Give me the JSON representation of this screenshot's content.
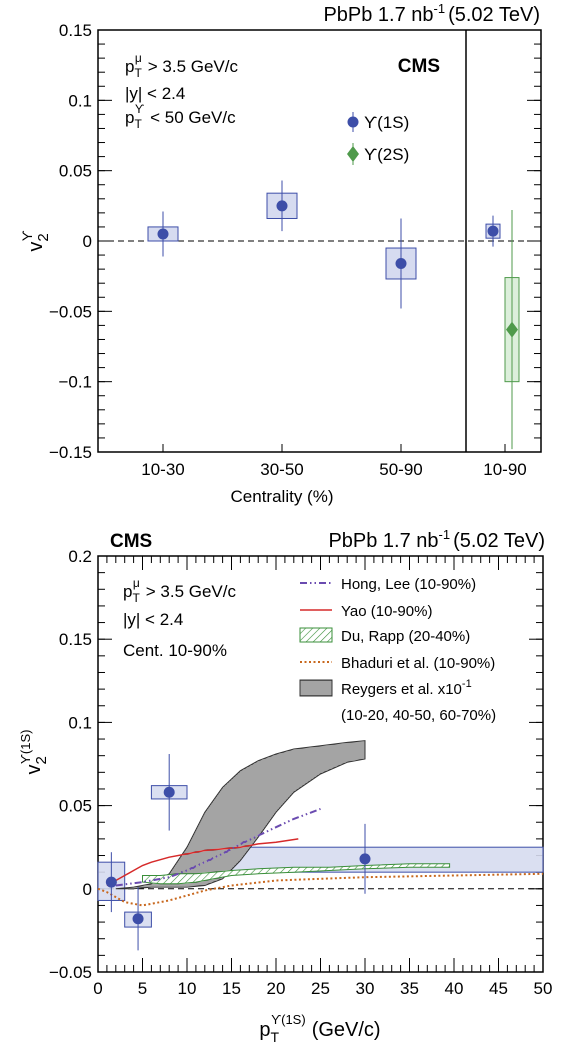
{
  "top_panel": {
    "header": {
      "system": "PbPb 1.7 nb",
      "lumi_exp": "-1",
      "energy": "(5.02 TeV)"
    },
    "cms_label": "CMS",
    "cuts": {
      "line1_var": "p",
      "line1_sub": "T",
      "line1_sup": "μ",
      "line1_rest": "> 3.5 GeV/c",
      "line2": "|y| < 2.4",
      "line3_var": "p",
      "line3_sub": "T",
      "line3_sup": "ϒ",
      "line3_rest": "< 50 GeV/c"
    },
    "ylabel_main": "v",
    "ylabel_sub": "2",
    "ylabel_sup": "ϒ",
    "xlabel": "Centrality (%)",
    "yticks": [
      "0.15",
      "0.1",
      "0.05",
      "0",
      "−0.05",
      "−0.1",
      "−0.15"
    ],
    "legend": [
      {
        "label": "ϒ(1S)",
        "color": "#3d4ea8",
        "marker": "circle"
      },
      {
        "label": "ϒ(2S)",
        "color": "#4f9a4b",
        "marker": "diamond"
      }
    ]
  },
  "bottom_panel": {
    "header": {
      "system": "PbPb 1.7 nb",
      "lumi_exp": "-1",
      "energy": "(5.02 TeV)"
    },
    "cms_label": "CMS",
    "cuts": {
      "line1_var": "p",
      "line1_sub": "T",
      "line1_sup": "μ",
      "line1_rest": "> 3.5 GeV/c",
      "line2": "|y| < 2.4",
      "line3": "Cent. 10-90%"
    },
    "ylabel_main": "v",
    "ylabel_sub": "2",
    "ylabel_sup": "ϒ(1S)",
    "xlabel_main": "p",
    "xlabel_sub": "T",
    "xlabel_sup": "ϒ(1S)",
    "xlabel_rest": "(GeV/c)",
    "yticks": [
      "0.2",
      "0.15",
      "0.1",
      "0.05",
      "0",
      "−0.05"
    ],
    "xticks": [
      "0",
      "5",
      "10",
      "15",
      "20",
      "25",
      "30",
      "35",
      "40",
      "45",
      "50"
    ],
    "legend": [
      {
        "label": "Hong, Lee (10-90%)",
        "color": "#6a4bb0",
        "style": "dashdot"
      },
      {
        "label": "Yao (10-90%)",
        "color": "#d62a2a",
        "style": "solid"
      },
      {
        "label": "Du, Rapp (20-40%)",
        "color": "#3a8f3a",
        "style": "hatch"
      },
      {
        "label": "Bhaduri et al. (10-90%)",
        "color": "#c8681e",
        "style": "dotted"
      },
      {
        "label": "Reygers et al.  x10",
        "label_exp": "-1",
        "label2": "(10-20, 40-50, 60-70%)",
        "color": "#666666",
        "style": "band"
      }
    ]
  },
  "chart_data": [
    {
      "type": "scatter",
      "panel": "top-left",
      "categories": [
        "10-30",
        "30-50",
        "50-90"
      ],
      "xlabel": "Centrality (%)",
      "ylabel": "v2 Υ",
      "ylim": [
        -0.15,
        0.15
      ],
      "series": [
        {
          "name": "ϒ(1S)",
          "color": "#3d4ea8",
          "values": [
            0.005,
            0.025,
            -0.016
          ],
          "stat_err": [
            0.016,
            0.018,
            0.032
          ],
          "syst_err": [
            0.005,
            0.009,
            0.011
          ]
        }
      ]
    },
    {
      "type": "scatter",
      "panel": "top-right",
      "categories": [
        "10-90"
      ],
      "ylim": [
        -0.15,
        0.15
      ],
      "series": [
        {
          "name": "ϒ(1S)",
          "color": "#3d4ea8",
          "values": [
            0.007
          ],
          "stat_err": [
            0.011
          ],
          "syst_err": [
            0.005
          ]
        },
        {
          "name": "ϒ(2S)",
          "color": "#4f9a4b",
          "values": [
            -0.063
          ],
          "stat_err": [
            0.085
          ],
          "syst_err": [
            0.037
          ]
        }
      ]
    },
    {
      "type": "line",
      "panel": "bottom",
      "xlabel": "pT ϒ(1S) (GeV/c)",
      "ylabel": "v2 ϒ(1S)",
      "xlim": [
        0,
        50
      ],
      "ylim": [
        -0.05,
        0.2
      ],
      "points": {
        "name": "ϒ(1S)",
        "color": "#3d4ea8",
        "x": [
          1.5,
          4.5,
          8.0,
          30.0
        ],
        "y": [
          0.004,
          -0.018,
          0.058,
          0.018
        ],
        "stat_err": [
          0.018,
          0.019,
          0.023,
          0.021
        ],
        "syst_lo": [
          -0.007,
          -0.023,
          0.054,
          0.01
        ],
        "syst_hi": [
          0.016,
          -0.014,
          0.062,
          0.025
        ],
        "box_xlo": [
          0,
          3,
          6,
          10
        ],
        "box_xhi": [
          3,
          6,
          10,
          50
        ]
      },
      "models": [
        {
          "name": "Hong, Lee (10-90%)",
          "color": "#6a4bb0",
          "style": "dashdot",
          "x": [
            2,
            5,
            8,
            10,
            12,
            14,
            16,
            18,
            20,
            22,
            24,
            25
          ],
          "y": [
            0.002,
            0.004,
            0.007,
            0.011,
            0.016,
            0.021,
            0.027,
            0.032,
            0.037,
            0.042,
            0.046,
            0.048
          ]
        },
        {
          "name": "Yao (10-90%)",
          "color": "#d62a2a",
          "style": "solid",
          "x": [
            1,
            2,
            3,
            4,
            5,
            6,
            8,
            10,
            12,
            14,
            16,
            18,
            20,
            22.5
          ],
          "y": [
            0.002,
            0.005,
            0.008,
            0.011,
            0.014,
            0.016,
            0.019,
            0.021,
            0.023,
            0.024,
            0.025,
            0.027,
            0.028,
            0.03
          ]
        },
        {
          "name": "Du, Rapp (20-40%)",
          "color": "#3a8f3a",
          "style": "band",
          "x": [
            5,
            7,
            9,
            11,
            13,
            15,
            18,
            22,
            26,
            30,
            35,
            39.5
          ],
          "y_lo": [
            0.004,
            0.003,
            0.003,
            0.004,
            0.006,
            0.008,
            0.009,
            0.01,
            0.011,
            0.012,
            0.013,
            0.013
          ],
          "y_hi": [
            0.008,
            0.008,
            0.009,
            0.009,
            0.01,
            0.011,
            0.012,
            0.013,
            0.013,
            0.014,
            0.015,
            0.015
          ]
        },
        {
          "name": "Bhaduri et al. (10-90%)",
          "color": "#c8681e",
          "style": "dotted",
          "x": [
            0,
            1,
            2,
            3,
            4,
            5,
            6,
            7,
            8,
            10,
            12,
            15,
            20,
            25,
            30,
            40,
            50
          ],
          "y": [
            0.0,
            -0.002,
            -0.005,
            -0.008,
            -0.009,
            -0.01,
            -0.009,
            -0.008,
            -0.007,
            -0.004,
            -0.001,
            0.002,
            0.005,
            0.006,
            0.007,
            0.008,
            0.009
          ]
        },
        {
          "name": "Reygers et al.  x10^-1 (10-20, 40-50, 60-70%)",
          "color": "#666666",
          "style": "band",
          "x": [
            2,
            4,
            6,
            8,
            10,
            12,
            14,
            16,
            18,
            20,
            22,
            25,
            28,
            30
          ],
          "y_lo": [
            0.0,
            0.0,
            0.001,
            0.001,
            0.001,
            0.002,
            0.006,
            0.017,
            0.031,
            0.046,
            0.058,
            0.069,
            0.076,
            0.078
          ],
          "y_hi": [
            0.0,
            0.001,
            0.003,
            0.009,
            0.025,
            0.046,
            0.061,
            0.071,
            0.077,
            0.081,
            0.084,
            0.086,
            0.088,
            0.089
          ]
        }
      ]
    }
  ]
}
